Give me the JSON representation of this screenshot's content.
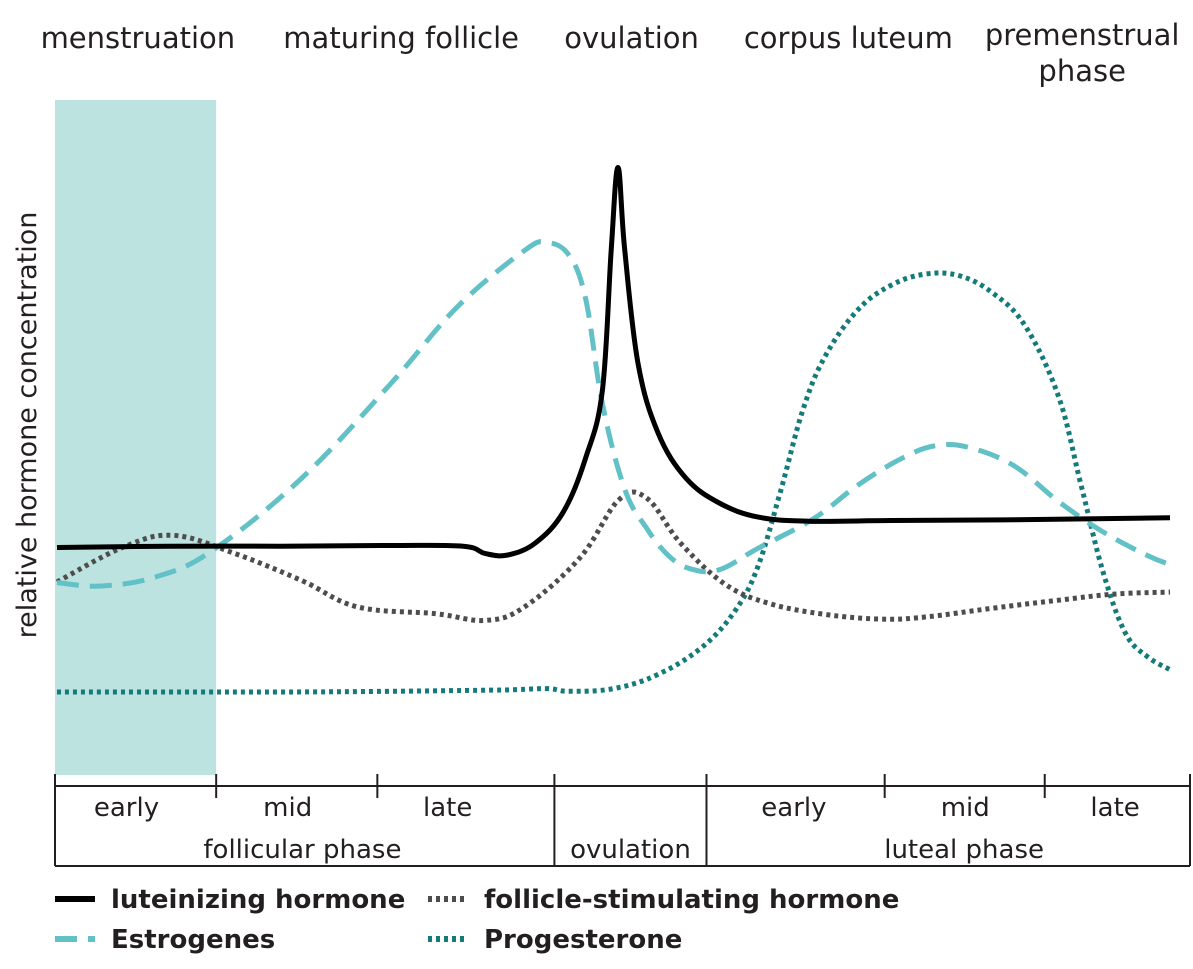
{
  "chart_data": {
    "type": "line",
    "ylabel": "relative hormone concentration",
    "x_domain": [
      0,
      100
    ],
    "ylim": [
      0,
      100
    ],
    "menstruation_band": [
      0,
      14.2
    ],
    "top_labels": [
      {
        "text": "menstruation",
        "x": 7.3
      },
      {
        "text": "maturing follicle",
        "x": 30.5
      },
      {
        "text": "ovulation",
        "x": 50.8
      },
      {
        "text": "corpus luteum",
        "x": 69.9
      },
      {
        "text": "premenstrual phase",
        "x": 90.5
      }
    ],
    "phase_boundaries": [
      0,
      14.2,
      28.4,
      44.0,
      57.4,
      73.1,
      87.2,
      100
    ],
    "subphases": [
      {
        "text": "early",
        "x": 6.3
      },
      {
        "text": "mid",
        "x": 20.5
      },
      {
        "text": "late",
        "x": 34.6
      },
      {
        "text": "early",
        "x": 65.1
      },
      {
        "text": "mid",
        "x": 80.2
      },
      {
        "text": "late",
        "x": 93.4
      }
    ],
    "phases": [
      {
        "text": "follicular phase",
        "x": 21.8
      },
      {
        "text": "ovulation",
        "x": 50.7
      },
      {
        "text": "luteal phase",
        "x": 80.1
      }
    ],
    "series": [
      {
        "name": "luteinizing hormone",
        "color": "#000000",
        "style": "solid",
        "x": [
          0,
          10,
          20,
          30,
          36.5,
          38.5,
          40.5,
          43.0,
          45.5,
          47.5,
          49.0,
          49.8,
          50.4,
          51.0,
          52.2,
          54.0,
          56.5,
          59.5,
          63.0,
          67.5,
          75,
          85,
          95,
          100
        ],
        "y": [
          33.7,
          33.9,
          33.9,
          34.0,
          33.9,
          32.8,
          32.6,
          34.4,
          39.0,
          47.0,
          57.0,
          78.0,
          90.0,
          78.0,
          61.0,
          50.7,
          44.0,
          40.3,
          38.2,
          37.6,
          37.7,
          37.8,
          38.0,
          38.1
        ]
      },
      {
        "name": "Estrogenes",
        "color": "#61c1c6",
        "style": "dashed",
        "x": [
          0,
          4,
          9,
          14,
          22,
          30,
          36,
          42,
          44,
          46,
          47.5,
          49,
          51,
          53,
          55,
          57,
          59.5,
          63,
          68,
          72,
          76,
          79,
          82,
          86,
          90,
          94,
          98,
          100
        ],
        "y": [
          28.5,
          28.0,
          29.4,
          33.3,
          44.0,
          58.0,
          69.4,
          77.7,
          78.9,
          77.0,
          70.5,
          55.0,
          42.4,
          36.5,
          32.4,
          30.5,
          30.4,
          33.6,
          38.0,
          43.0,
          47.0,
          48.8,
          48.5,
          45.8,
          40.5,
          36.0,
          32.5,
          31.2
        ]
      },
      {
        "name": "follicle-stimulating hormone",
        "color": "#4d4d4d",
        "style": "dotted",
        "x": [
          0,
          6,
          10.5,
          16,
          22,
          27,
          34,
          38.5,
          42,
          47,
          50.5,
          53,
          56,
          60,
          64,
          69,
          74,
          78,
          84,
          90,
          95,
          100
        ],
        "y": [
          28.6,
          33.8,
          35.5,
          32.8,
          28.8,
          24.9,
          23.9,
          22.9,
          24.9,
          32.2,
          40.8,
          41.0,
          34.4,
          28.3,
          25.4,
          23.8,
          23.1,
          23.4,
          24.7,
          25.9,
          26.8,
          27.1
        ]
      },
      {
        "name": "Progesterone",
        "color": "#157a7a",
        "style": "dotted",
        "x": [
          0,
          10,
          20,
          30,
          40,
          44,
          46,
          50,
          54,
          58,
          61,
          63,
          65,
          67,
          69,
          72,
          75,
          78,
          81,
          84,
          87,
          90,
          92,
          94,
          96,
          98,
          100
        ],
        "y": [
          12.3,
          12.3,
          12.3,
          12.4,
          12.6,
          12.8,
          12.4,
          12.8,
          14.9,
          19.0,
          24.5,
          31.0,
          42.0,
          54.0,
          62.0,
          69.0,
          72.6,
          74.2,
          74.0,
          71.5,
          66.5,
          56.0,
          43.0,
          30.0,
          21.0,
          17.5,
          15.6
        ]
      }
    ]
  },
  "legend": [
    {
      "label": "luteinizing hormone",
      "color": "#000000",
      "style": "solid"
    },
    {
      "label": "follicle-stimulating hormone",
      "color": "#4d4d4d",
      "style": "dotted"
    },
    {
      "label": "Estrogenes",
      "color": "#61c1c6",
      "style": "dashed"
    },
    {
      "label": "Progesterone",
      "color": "#157a7a",
      "style": "dotted"
    }
  ]
}
